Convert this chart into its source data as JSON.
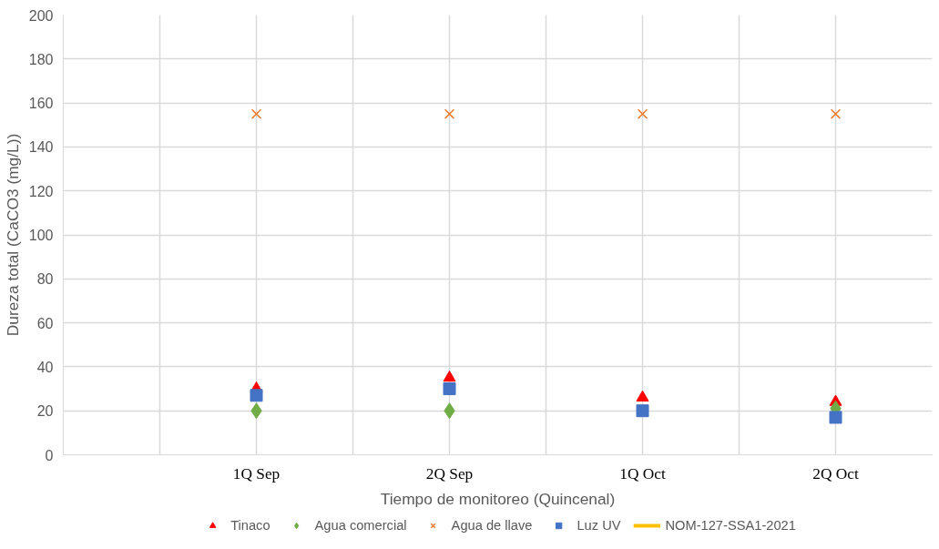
{
  "chart_data": {
    "type": "scatter",
    "xlabel": "Tiempo de monitoreo (Quincenal)",
    "ylabel": "Dureza total (CaCO3 (mg/L))",
    "categories": [
      "1Q Sep",
      "2Q Sep",
      "1Q Oct",
      "2Q Oct"
    ],
    "series": [
      {
        "name": "Tinaco",
        "color": "#ff0000",
        "marker": "triangle",
        "values": [
          30,
          35,
          26,
          24
        ]
      },
      {
        "name": "Agua comercial",
        "color": "#70ad47",
        "marker": "diamond",
        "values": [
          20,
          20,
          null,
          21
        ]
      },
      {
        "name": "Agua de llave",
        "color": "#ed7d31",
        "marker": "cross",
        "values": [
          155,
          155,
          155,
          155
        ]
      },
      {
        "name": "Luz UV",
        "color": "#4472c4",
        "marker": "square",
        "values": [
          27,
          30,
          20,
          17
        ]
      },
      {
        "name": "NOM-127-SSA1-2021",
        "color": "#ffc000",
        "type": "line",
        "values": [
          null,
          null,
          null,
          null
        ]
      }
    ],
    "ylim": [
      0,
      200
    ],
    "yticks": [
      0,
      20,
      40,
      60,
      80,
      100,
      120,
      140,
      160,
      180,
      200
    ],
    "grid": true,
    "legend": "bottom"
  }
}
